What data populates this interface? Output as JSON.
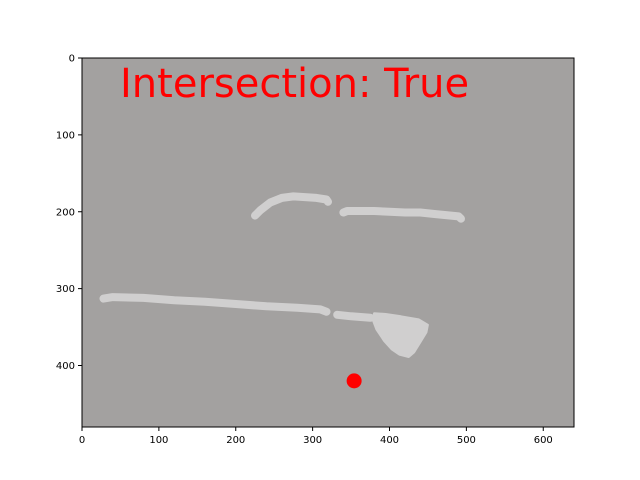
{
  "chart_data": {
    "type": "scatter",
    "title": "",
    "xlabel": "",
    "ylabel": "",
    "xlim": [
      0,
      640
    ],
    "ylim": [
      480,
      0
    ],
    "y_inverted": true,
    "grid": false,
    "x_ticks": [
      0,
      100,
      200,
      300,
      400,
      500,
      600
    ],
    "y_ticks": [
      0,
      100,
      200,
      300,
      400
    ],
    "background_color": "#a3a1a0",
    "stroke_color": "#d0cfcf",
    "point_color": "#ff0000",
    "annotation": {
      "text": "Intersection: True",
      "color": "#ff0000"
    },
    "strokes": [
      {
        "points": [
          [
            225,
            205
          ],
          [
            232,
            198
          ],
          [
            245,
            188
          ],
          [
            260,
            182
          ],
          [
            275,
            180
          ],
          [
            290,
            181
          ],
          [
            305,
            182
          ],
          [
            318,
            184
          ],
          [
            320,
            187
          ]
        ]
      },
      {
        "points": [
          [
            340,
            201
          ],
          [
            345,
            199
          ],
          [
            360,
            199
          ],
          [
            380,
            199
          ],
          [
            400,
            200
          ],
          [
            420,
            201
          ],
          [
            440,
            201
          ],
          [
            460,
            203
          ],
          [
            490,
            206
          ],
          [
            493,
            209
          ]
        ]
      },
      {
        "points": [
          [
            28,
            313
          ],
          [
            40,
            311
          ],
          [
            80,
            312
          ],
          [
            120,
            315
          ],
          [
            160,
            317
          ],
          [
            200,
            320
          ],
          [
            240,
            323
          ],
          [
            280,
            325
          ],
          [
            310,
            327
          ],
          [
            318,
            330
          ]
        ]
      },
      {
        "points": [
          [
            332,
            334
          ],
          [
            350,
            336
          ],
          [
            375,
            338
          ]
        ]
      }
    ],
    "blob": {
      "outline": [
        [
          380,
          332
        ],
        [
          395,
          333
        ],
        [
          415,
          336
        ],
        [
          438,
          340
        ],
        [
          450,
          347
        ],
        [
          448,
          357
        ],
        [
          440,
          370
        ],
        [
          432,
          383
        ],
        [
          425,
          389
        ],
        [
          413,
          386
        ],
        [
          403,
          379
        ],
        [
          393,
          368
        ],
        [
          383,
          353
        ],
        [
          378,
          340
        ]
      ]
    },
    "points": [
      {
        "x": 354,
        "y": 420
      }
    ]
  }
}
